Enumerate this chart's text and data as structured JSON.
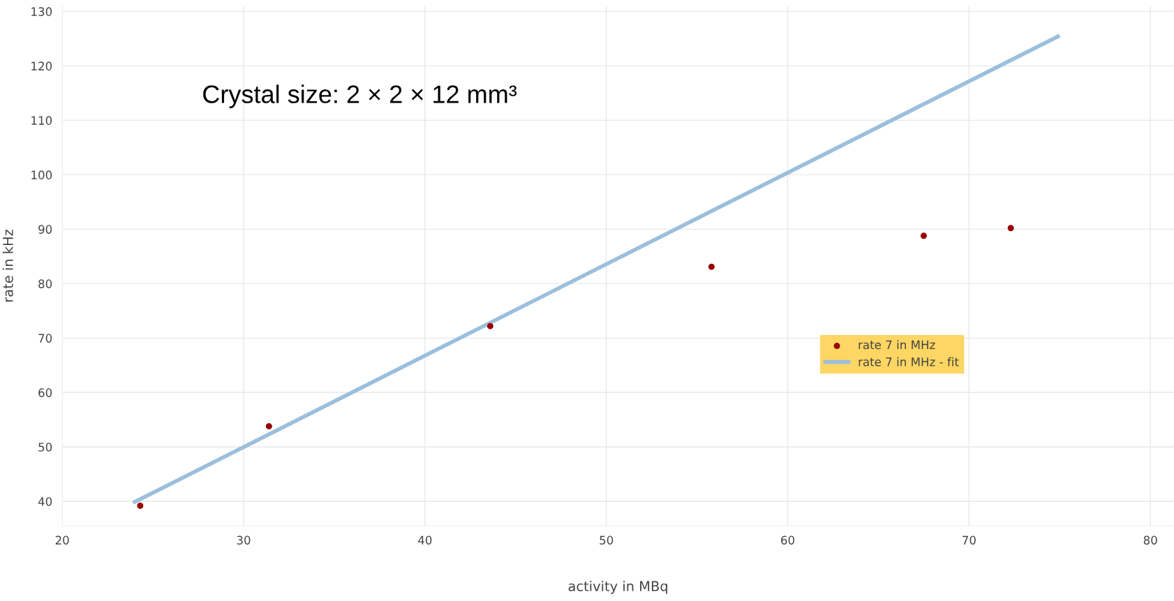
{
  "chart_data": {
    "type": "scatter",
    "xlabel": "activity in MBq",
    "ylabel": "rate in kHz",
    "xlim": [
      20,
      81.3
    ],
    "ylim": [
      35.5,
      131
    ],
    "xticks": [
      20,
      30,
      40,
      50,
      60,
      70,
      80
    ],
    "yticks": [
      40,
      50,
      60,
      70,
      80,
      90,
      100,
      110,
      120,
      130
    ],
    "grid": true,
    "legend": "right",
    "series": [
      {
        "name": "rate 7 in MHz",
        "marker": "circle",
        "color": "#990000",
        "x": [
          24.3,
          31.4,
          43.6,
          55.8,
          67.5,
          72.3
        ],
        "values": [
          39.2,
          53.8,
          72.2,
          83.1,
          88.8,
          90.2
        ]
      },
      {
        "name": "rate 7 in MHz - fit",
        "type": "line",
        "marker": "none",
        "line_style": "solid",
        "color": "#9bbfdc",
        "x": [
          24.0,
          74.9
        ],
        "values": [
          39.9,
          125.4
        ]
      }
    ],
    "annotations": [
      "Crystal size: 2 × 2 × 12 mm³"
    ]
  }
}
